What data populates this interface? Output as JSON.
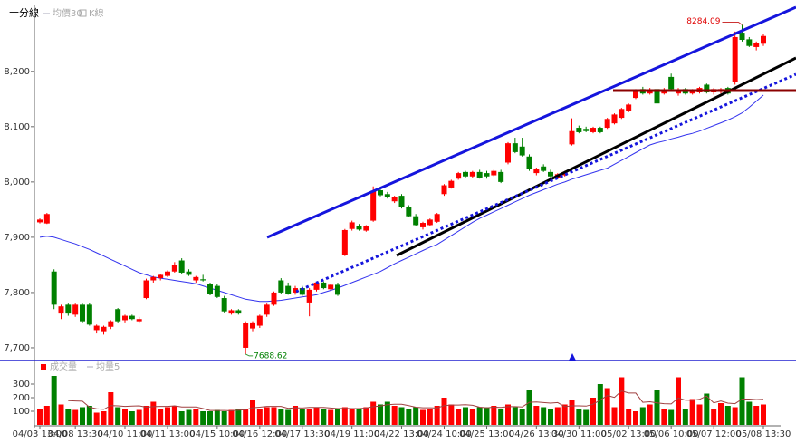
{
  "chart_data": {
    "type": "candlestick",
    "title": "十分線",
    "legend_k": "K線",
    "up_color": "#ff0000",
    "down_color": "#008000",
    "categories": [
      "04/03 13:00",
      null,
      null,
      null,
      null,
      "04/08 13:30",
      null,
      null,
      null,
      null,
      null,
      null,
      "04/10 11:00",
      null,
      null,
      null,
      null,
      null,
      "04/11 13:00",
      null,
      null,
      null,
      null,
      null,
      null,
      "04/15 10:00",
      null,
      null,
      null,
      null,
      null,
      "04/16 12:00",
      null,
      null,
      null,
      null,
      null,
      "04/17 13:30",
      null,
      null,
      null,
      null,
      null,
      null,
      "04/19 11:00",
      null,
      null,
      null,
      null,
      null,
      null,
      "04/22 13:00",
      null,
      null,
      null,
      null,
      null,
      "04/24 10:00",
      null,
      null,
      null,
      null,
      null,
      "04/25 13:00",
      null,
      null,
      null,
      null,
      null,
      null,
      "04/26 13:30",
      null,
      null,
      null,
      null,
      null,
      "04/30 11:00",
      null,
      null,
      null,
      null,
      null,
      null,
      "05/02 13:00",
      null,
      null,
      null,
      null,
      null,
      "05/06 10:00",
      null,
      null,
      null,
      null,
      null,
      "05/07 12:00",
      null,
      null,
      null,
      null,
      null,
      null,
      "05/08 13:30"
    ],
    "open": [
      7927,
      7925,
      7838,
      7762,
      7778,
      7760,
      7778,
      7778,
      7732,
      7730,
      7738,
      7770,
      7750,
      7758,
      7748,
      7790,
      7822,
      7826,
      7830,
      7838,
      7858,
      7838,
      7822,
      7824,
      7815,
      7812,
      7790,
      7762,
      7768,
      7700,
      7735,
      7740,
      7760,
      7778,
      7822,
      7812,
      7800,
      7808,
      7782,
      7805,
      7818,
      7806,
      7814,
      7868,
      7915,
      7920,
      7912,
      7930,
      7985,
      7978,
      7965,
      7975,
      7955,
      7938,
      7918,
      7922,
      7928,
      7978,
      7990,
      8006,
      8018,
      8010,
      8018,
      8016,
      8012,
      8018,
      8035,
      8070,
      8064,
      8046,
      8016,
      8028,
      8018,
      8008,
      8012,
      8068,
      8098,
      8096,
      8090,
      8098,
      8098,
      8106,
      8116,
      8128,
      8152,
      8168,
      8160,
      8168,
      8160,
      8190,
      8160,
      8168,
      8160,
      8162,
      8176,
      8162,
      8164,
      8170,
      8180,
      8270,
      8258,
      8244,
      8250
    ],
    "high": [
      7934,
      7944,
      7842,
      7778,
      7780,
      7780,
      7780,
      7781,
      7742,
      7740,
      7750,
      7772,
      7760,
      7760,
      7756,
      7825,
      7830,
      7834,
      7840,
      7855,
      7862,
      7842,
      7830,
      7832,
      7818,
      7815,
      7794,
      7770,
      7770,
      7748,
      7748,
      7760,
      7780,
      7802,
      7826,
      7818,
      7812,
      7812,
      7808,
      7820,
      7820,
      7816,
      7818,
      7915,
      7930,
      7924,
      7922,
      7992,
      7990,
      7982,
      7975,
      7978,
      7958,
      7942,
      7928,
      7934,
      7944,
      7996,
      8004,
      8018,
      8020,
      8020,
      8022,
      8020,
      8022,
      8022,
      8072,
      8080,
      8080,
      8050,
      8026,
      8032,
      8022,
      8016,
      8020,
      8115,
      8102,
      8100,
      8100,
      8100,
      8116,
      8124,
      8134,
      8142,
      8168,
      8172,
      8170,
      8170,
      8170,
      8196,
      8170,
      8170,
      8168,
      8172,
      8178,
      8170,
      8170,
      8172,
      8272,
      8284.09,
      8262,
      8254,
      8268
    ],
    "low": [
      7925,
      7924,
      7770,
      7752,
      7758,
      7756,
      7745,
      7740,
      7726,
      7724,
      7734,
      7746,
      7746,
      7750,
      7744,
      7788,
      7818,
      7822,
      7828,
      7836,
      7834,
      7830,
      7818,
      7820,
      7795,
      7790,
      7764,
      7760,
      7760,
      7688.62,
      7730,
      7736,
      7756,
      7776,
      7798,
      7796,
      7796,
      7794,
      7757,
      7802,
      7806,
      7804,
      7794,
      7866,
      7912,
      7912,
      7910,
      7928,
      7974,
      7970,
      7962,
      7952,
      7936,
      7920,
      7914,
      7920,
      7926,
      7975,
      7988,
      8004,
      8008,
      8008,
      8006,
      8006,
      8010,
      7998,
      8032,
      8052,
      8046,
      8020,
      8012,
      8018,
      8008,
      8006,
      8010,
      8066,
      8088,
      8090,
      8088,
      8088,
      8096,
      8104,
      8114,
      8126,
      8150,
      8158,
      8158,
      8140,
      8158,
      8166,
      8156,
      8158,
      8158,
      8160,
      8160,
      8158,
      8160,
      8158,
      8176,
      8254,
      8244,
      8238,
      8246
    ],
    "close": [
      7932,
      7942,
      7778,
      7775,
      7762,
      7778,
      7748,
      7742,
      7740,
      7738,
      7748,
      7748,
      7758,
      7752,
      7752,
      7822,
      7828,
      7832,
      7838,
      7850,
      7836,
      7832,
      7828,
      7822,
      7797,
      7792,
      7766,
      7768,
      7762,
      7745,
      7746,
      7758,
      7778,
      7800,
      7800,
      7798,
      7808,
      7796,
      7805,
      7818,
      7808,
      7814,
      7796,
      7913,
      7927,
      7914,
      7920,
      7984,
      7976,
      7972,
      7972,
      7954,
      7938,
      7922,
      7926,
      7932,
      7942,
      7994,
      8002,
      8016,
      8010,
      8018,
      8008,
      8010,
      8020,
      8000,
      8070,
      8054,
      8048,
      8024,
      8024,
      8020,
      8010,
      8014,
      8018,
      8092,
      8090,
      8092,
      8098,
      8090,
      8114,
      8122,
      8132,
      8140,
      8164,
      8160,
      8166,
      8142,
      8166,
      8168,
      8166,
      8160,
      8166,
      8170,
      8162,
      8168,
      8168,
      8160,
      8262,
      8257,
      8246,
      8252,
      8264
    ],
    "ma": {
      "name": "均價30",
      "color": "#3333ee",
      "values": [
        7900,
        7902,
        7900,
        7896,
        7892,
        7888,
        7883,
        7878,
        7872,
        7866,
        7860,
        7854,
        7848,
        7842,
        7836,
        7832,
        7828,
        7826,
        7824,
        7822,
        7820,
        7818,
        7816,
        7812,
        7808,
        7804,
        7800,
        7796,
        7792,
        7788,
        7786,
        7784,
        7784,
        7785,
        7786,
        7788,
        7790,
        7792,
        7794,
        7796,
        7800,
        7804,
        7808,
        7813,
        7818,
        7823,
        7828,
        7833,
        7838,
        7845,
        7852,
        7858,
        7864,
        7870,
        7876,
        7882,
        7887,
        7895,
        7903,
        7911,
        7919,
        7927,
        7934,
        7940,
        7946,
        7952,
        7958,
        7964,
        7970,
        7976,
        7981,
        7986,
        7991,
        7996,
        8000,
        8005,
        8009,
        8013,
        8017,
        8021,
        8025,
        8032,
        8039,
        8046,
        8053,
        8060,
        8067,
        8071,
        8074,
        8078,
        8081,
        8085,
        8088,
        8092,
        8097,
        8102,
        8107,
        8112,
        8118,
        8125,
        8135,
        8146,
        8157
      ]
    },
    "ylim": [
      7677,
      8316
    ],
    "yticks": [
      {
        "value": 7700,
        "label": "7,700"
      },
      {
        "value": 7800,
        "label": "7,800"
      },
      {
        "value": 7900,
        "label": "7,900"
      },
      {
        "value": 8000,
        "label": "8,000"
      },
      {
        "value": 8100,
        "label": "8,100"
      },
      {
        "value": 8200,
        "label": "8,200"
      }
    ],
    "volume": {
      "name": "成交量",
      "values": [
        120,
        140,
        360,
        150,
        120,
        110,
        130,
        140,
        90,
        100,
        240,
        130,
        120,
        100,
        110,
        140,
        170,
        120,
        130,
        140,
        100,
        110,
        120,
        100,
        100,
        110,
        100,
        110,
        120,
        120,
        180,
        120,
        130,
        130,
        120,
        110,
        140,
        120,
        120,
        130,
        120,
        110,
        120,
        130,
        120,
        120,
        130,
        170,
        150,
        170,
        140,
        130,
        120,
        130,
        110,
        120,
        140,
        200,
        150,
        120,
        130,
        120,
        130,
        130,
        140,
        120,
        150,
        130,
        120,
        260,
        140,
        130,
        120,
        130,
        150,
        180,
        120,
        110,
        200,
        300,
        270,
        130,
        350,
        120,
        100,
        130,
        150,
        260,
        120,
        110,
        350,
        120,
        190,
        150,
        230,
        120,
        160,
        140,
        130,
        350,
        170,
        140,
        150
      ],
      "ma": {
        "name": "均量5",
        "color": "#a04040",
        "values": [
          null,
          null,
          null,
          null,
          178,
          176,
          174,
          130,
          118,
          114,
          142,
          140,
          136,
          138,
          140,
          130,
          134,
          136,
          136,
          140,
          132,
          132,
          132,
          120,
          106,
          106,
          106,
          104,
          108,
          112,
          126,
          130,
          136,
          136,
          136,
          122,
          126,
          124,
          128,
          128,
          128,
          124,
          120,
          122,
          120,
          120,
          124,
          134,
          138,
          148,
          152,
          152,
          142,
          130,
          126,
          126,
          124,
          142,
          146,
          146,
          148,
          144,
          130,
          126,
          130,
          128,
          134,
          134,
          132,
          166,
          168,
          164,
          160,
          164,
          134,
          140,
          140,
          138,
          152,
          182,
          216,
          202,
          250,
          234,
          234,
          166,
          170,
          162,
          156,
          154,
          198,
          182,
          180,
          188,
          212,
          162,
          176,
          160,
          156,
          190,
          190,
          186,
          188
        ]
      },
      "ylim": [
        0,
        460
      ],
      "yticks": [
        100,
        200,
        300
      ]
    }
  }
}
